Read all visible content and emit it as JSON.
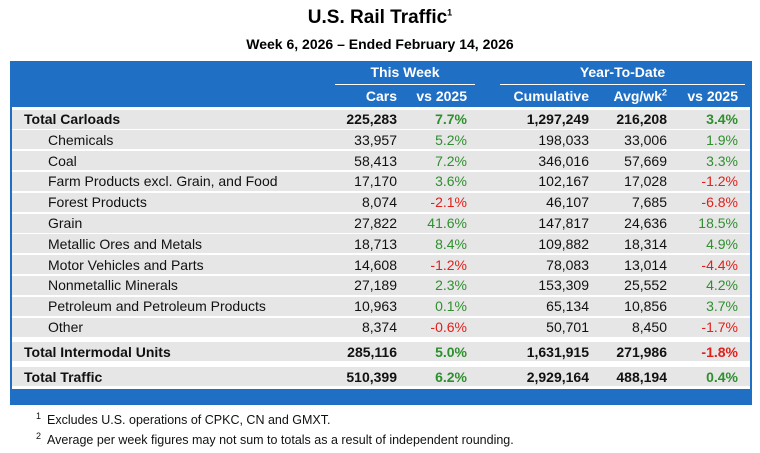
{
  "title": "U.S. Rail Traffic",
  "title_note": "1",
  "subtitle": "Week 6, 2026 – Ended February 14, 2026",
  "table": {
    "groups": [
      "This Week",
      "Year-To-Date"
    ],
    "columns": [
      {
        "label": "Cars"
      },
      {
        "label": "vs 2025"
      },
      {
        "label": "Cumulative"
      },
      {
        "label": "Avg/wk",
        "note": "2"
      },
      {
        "label": "vs 2025"
      }
    ],
    "sections": [
      {
        "label": "Total Carloads",
        "cells": [
          "225,283",
          "7.7%",
          "1,297,249",
          "216,208",
          "3.4%"
        ],
        "items": [
          {
            "label": "Chemicals",
            "cells": [
              "33,957",
              "5.2%",
              "198,033",
              "33,006",
              "1.9%"
            ]
          },
          {
            "label": "Coal",
            "cells": [
              "58,413",
              "7.2%",
              "346,016",
              "57,669",
              "3.3%"
            ]
          },
          {
            "label": "Farm Products excl. Grain, and Food",
            "cells": [
              "17,170",
              "3.6%",
              "102,167",
              "17,028",
              "-1.2%"
            ]
          },
          {
            "label": "Forest Products",
            "cells": [
              "8,074",
              "-2.1%",
              "46,107",
              "7,685",
              "-6.8%"
            ]
          },
          {
            "label": "Grain",
            "cells": [
              "27,822",
              "41.6%",
              "147,817",
              "24,636",
              "18.5%"
            ]
          },
          {
            "label": "Metallic Ores and Metals",
            "cells": [
              "18,713",
              "8.4%",
              "109,882",
              "18,314",
              "4.9%"
            ]
          },
          {
            "label": "Motor Vehicles and Parts",
            "cells": [
              "14,608",
              "-1.2%",
              "78,083",
              "13,014",
              "-4.4%"
            ]
          },
          {
            "label": "Nonmetallic Minerals",
            "cells": [
              "27,189",
              "2.3%",
              "153,309",
              "25,552",
              "4.2%"
            ]
          },
          {
            "label": "Petroleum and Petroleum Products",
            "cells": [
              "10,963",
              "0.1%",
              "65,134",
              "10,856",
              "3.7%"
            ]
          },
          {
            "label": "Other",
            "cells": [
              "8,374",
              "-0.6%",
              "50,701",
              "8,450",
              "-1.7%"
            ]
          }
        ]
      },
      {
        "label": "Total Intermodal Units",
        "cells": [
          "285,116",
          "5.0%",
          "1,631,915",
          "271,986",
          "-1.8%"
        ],
        "items": []
      },
      {
        "label": "Total Traffic",
        "cells": [
          "510,399",
          "6.2%",
          "2,929,164",
          "488,194",
          "0.4%"
        ],
        "items": []
      }
    ]
  },
  "footnotes": [
    {
      "mark": "1",
      "text": "Excludes U.S. operations of CPKC, CN and GMXT."
    },
    {
      "mark": "2",
      "text": "Average per week figures may not sum to totals as a result of independent rounding."
    }
  ]
}
